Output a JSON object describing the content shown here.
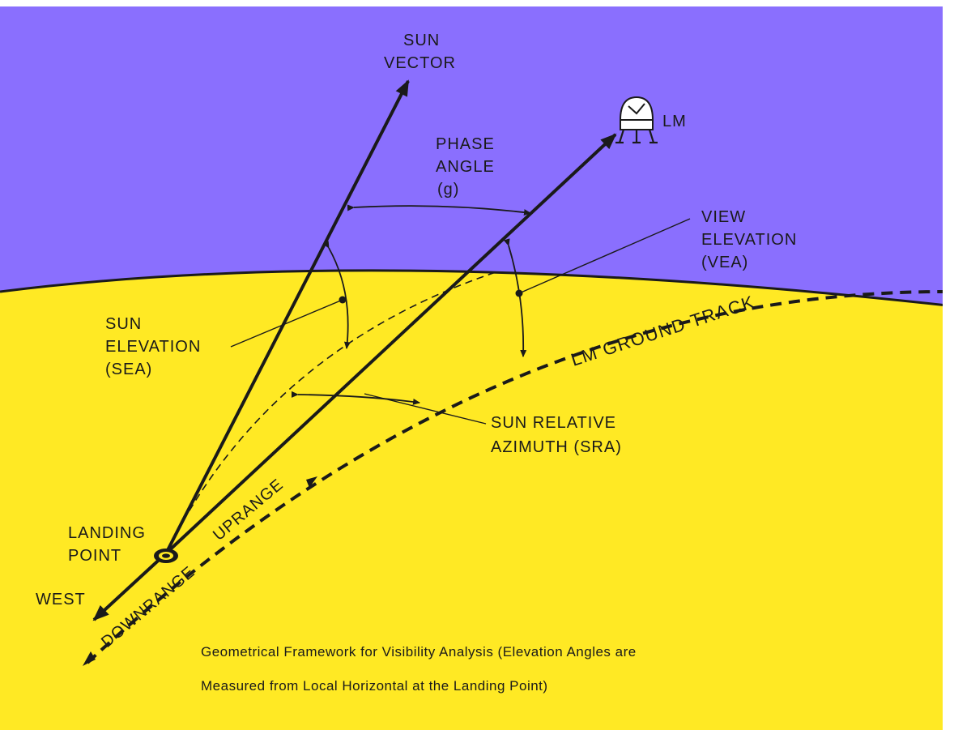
{
  "colors": {
    "sky": "#8a6ffe",
    "ground": "#ffe924",
    "ink": "#1a1a1a",
    "border": "#ffffff"
  },
  "labels": {
    "sun_vector": [
      "SUN",
      "VECTOR"
    ],
    "lm": "LM",
    "phase_angle": [
      "PHASE",
      "ANGLE",
      "(g)"
    ],
    "view_elevation": [
      "VIEW",
      "ELEVATION",
      "(VEA)"
    ],
    "sun_elevation": [
      "SUN",
      "ELEVATION",
      "(SEA)"
    ],
    "lm_ground_track": "LM GROUND TRACK",
    "sun_relative_azimuth": [
      "SUN RELATIVE",
      "AZIMUTH (SRA)"
    ],
    "landing_point": [
      "LANDING",
      "POINT"
    ],
    "west": "WEST",
    "downrange": "DOWNRANGE",
    "uprange": "UPRANGE"
  },
  "caption": [
    "Geometrical Framework for Visibility Analysis (Elevation Angles are",
    "Measured from Local Horizontal at the Landing Point)"
  ],
  "icons": {
    "lm_vehicle": "lunar-module-icon",
    "landing_point_marker": "landing-point-marker"
  }
}
